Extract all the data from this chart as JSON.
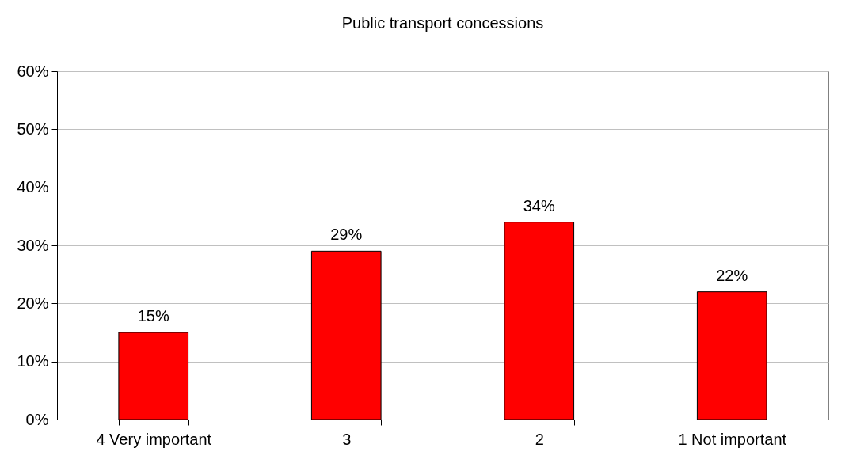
{
  "chart_data": {
    "type": "bar",
    "title": "Public transport concessions",
    "categories": [
      "4 Very important",
      "3",
      "2",
      "1 Not important"
    ],
    "values": [
      15,
      29,
      34,
      22
    ],
    "color": "#ff0000",
    "value_labels": [
      "15%",
      "29%",
      "34%",
      "22%"
    ],
    "ylim": [
      0,
      60
    ],
    "yticks": [
      {
        "value": 0,
        "label": "0%"
      },
      {
        "value": 10,
        "label": "10%"
      },
      {
        "value": 20,
        "label": "20%"
      },
      {
        "value": 30,
        "label": "30%"
      },
      {
        "value": 40,
        "label": "40%"
      },
      {
        "value": 50,
        "label": "50%"
      },
      {
        "value": 60,
        "label": "60%"
      }
    ],
    "grid": "y"
  }
}
